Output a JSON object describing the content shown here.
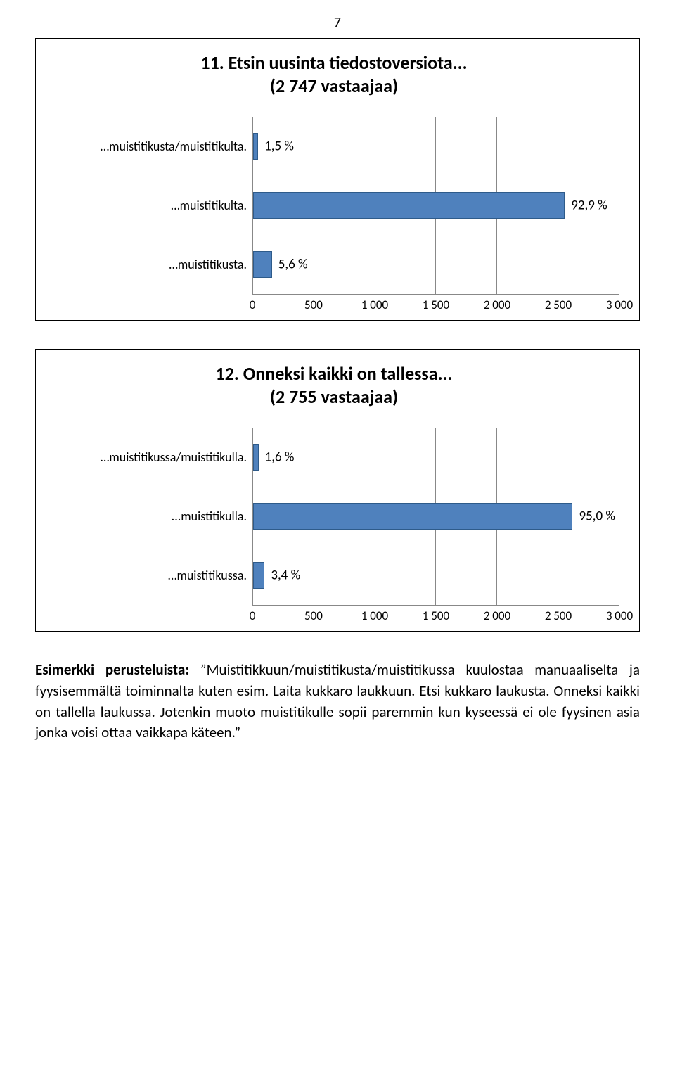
{
  "page_number": "7",
  "charts": [
    {
      "title_line1": "11. Etsin uusinta tiedostoversiota...",
      "title_line2": "(2 747 vastaajaa)",
      "bar_color": "#4f81bd",
      "bar_border": "#2e5b8a",
      "grid_color": "#888888",
      "x_min": 0,
      "x_max": 3000,
      "x_ticks": [
        "0",
        "500",
        "1 000",
        "1 500",
        "2 000",
        "2 500",
        "3 000"
      ],
      "rows": [
        {
          "label": "…muistitikusta/muistitikulta.",
          "value_label": "1,5 %",
          "value": 41
        },
        {
          "label": "…muistitikulta.",
          "value_label": "92,9 %",
          "value": 2552
        },
        {
          "label": "…muistitikusta.",
          "value_label": "5,6 %",
          "value": 154
        }
      ]
    },
    {
      "title_line1": "12. Onneksi kaikki on tallessa...",
      "title_line2": "(2 755 vastaajaa)",
      "bar_color": "#4f81bd",
      "bar_border": "#2e5b8a",
      "grid_color": "#888888",
      "x_min": 0,
      "x_max": 3000,
      "x_ticks": [
        "0",
        "500",
        "1 000",
        "1 500",
        "2 000",
        "2 500",
        "3 000"
      ],
      "rows": [
        {
          "label": "…muistitikussa/muistitikulla.",
          "value_label": "1,6 %",
          "value": 44
        },
        {
          "label": "...muistitikulla.",
          "value_label": "95,0 %",
          "value": 2617
        },
        {
          "label": "…muistitikussa.",
          "value_label": "3,4 %",
          "value": 94
        }
      ]
    }
  ],
  "example": {
    "bold_lead": "Esimerkki perusteluista:",
    "body": " ”Muistitikkuun/muistitikusta/muistitikussa kuulostaa manuaaliselta ja fyysisemmältä toiminnalta kuten esim. Laita kukkaro laukkuun. Etsi kukkaro laukusta. Onneksi kaikki on tallella laukussa. Jotenkin muoto muistitikulle sopii paremmin kun kyseessä ei ole fyysinen asia jonka voisi ottaa vaikkapa käteen.” "
  }
}
